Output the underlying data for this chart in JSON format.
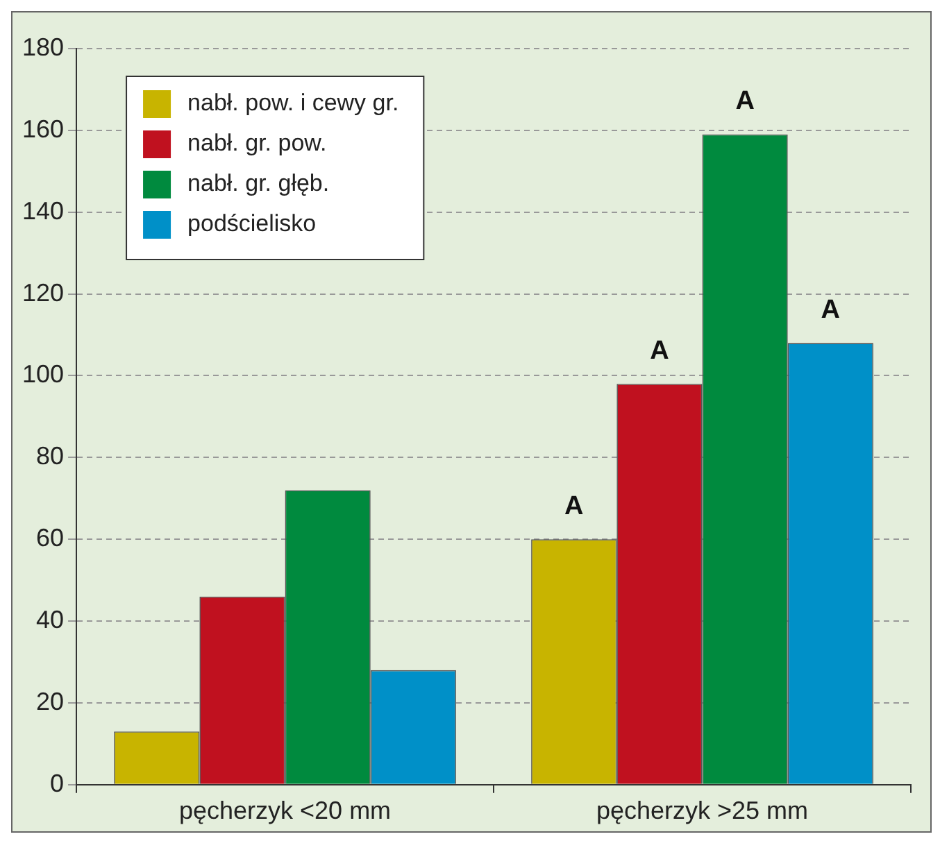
{
  "chart_data": {
    "type": "bar",
    "categories": [
      "pęcherzyk <20 mm",
      "pęcherzyk >25 mm"
    ],
    "series": [
      {
        "name": "nabł. pow. i cewy gr.",
        "color": "#c8b400",
        "values": [
          13,
          60
        ]
      },
      {
        "name": "nabł. gr. pow.",
        "color": "#c0111f",
        "values": [
          46,
          98
        ]
      },
      {
        "name": "nabł. gr. głęb.",
        "color": "#008a3e",
        "values": [
          72,
          159
        ]
      },
      {
        "name": "podścielisko",
        "color": "#0090c8",
        "values": [
          28,
          108
        ]
      }
    ],
    "ylim": [
      0,
      180
    ],
    "yticks": [
      0,
      20,
      40,
      60,
      80,
      100,
      120,
      140,
      160,
      180
    ],
    "grid": "y",
    "legend": "top left",
    "annotations": [
      "A",
      "A",
      "A",
      "A"
    ]
  }
}
